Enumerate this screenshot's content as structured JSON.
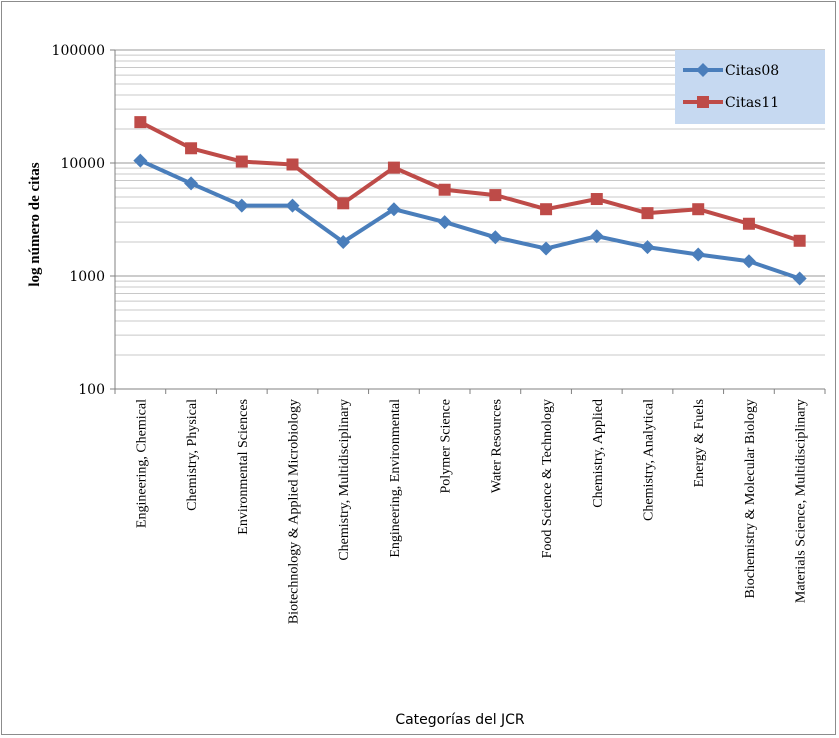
{
  "chart_data": {
    "type": "line",
    "xlabel": "Categorías del JCR",
    "ylabel": "log número de citas",
    "yscale": "log",
    "ylim": [
      100,
      100000
    ],
    "yticks": [
      "100000",
      "10000",
      "1000",
      "100"
    ],
    "grid": true,
    "legend_position": "top-right",
    "categories": [
      "Engineering, Chemical",
      "Chemistry, Physical",
      "Environmental Sciences",
      "Biotechnology & Applied Microbiology",
      "Chemistry, Multidisciplinary",
      "Engineering, Environmental",
      "Polymer Science",
      "Water Resources",
      "Food Science & Technology",
      "Chemistry, Applied",
      "Chemistry, Analytical",
      "Energy & Fuels",
      "Biochemistry & Molecular Biology",
      "Materials Science, Multidisciplinary"
    ],
    "series": [
      {
        "name": "Citas08",
        "color": "#4a7ebb",
        "marker": "diamond",
        "values": [
          10500,
          6600,
          4200,
          4200,
          2000,
          3900,
          3000,
          2200,
          1750,
          2250,
          1800,
          1550,
          1350,
          950
        ]
      },
      {
        "name": "Citas11",
        "color": "#be4b48",
        "marker": "square",
        "values": [
          23000,
          13500,
          10300,
          9700,
          4400,
          9100,
          5800,
          5200,
          3900,
          4800,
          3600,
          3900,
          2900,
          2050
        ]
      }
    ]
  }
}
